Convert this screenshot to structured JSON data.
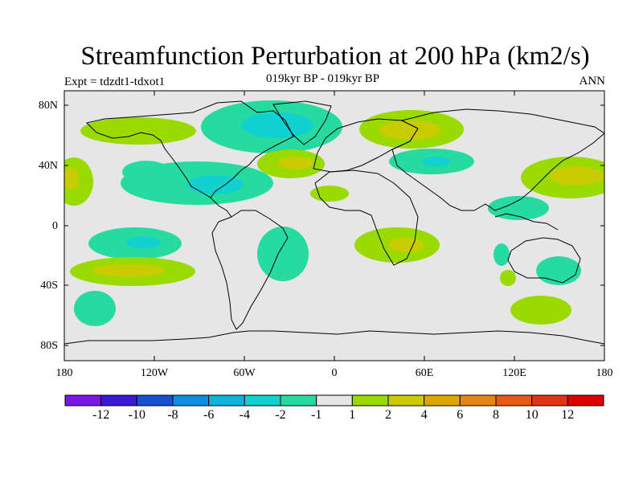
{
  "header": {
    "title": "Streamfunction Perturbation at 200 hPa (km2/s)",
    "subtitle": "019kyr BP - 019kyr BP",
    "experiment": "Expt = tdzdt1-tdxot1",
    "season": "ANN"
  },
  "axes": {
    "lat_labels": [
      "80N",
      "40N",
      "0",
      "40S",
      "80S"
    ],
    "lon_labels": [
      "180",
      "120W",
      "60W",
      "0",
      "60E",
      "120E",
      "180"
    ]
  },
  "colorbar": {
    "colors": [
      "#7b16e6",
      "#3a1ad6",
      "#1750d0",
      "#0e8ee0",
      "#0fb4dc",
      "#10d1cf",
      "#27dba0",
      "#e6e6e6",
      "#9ada00",
      "#c8cc00",
      "#dca800",
      "#e6841a",
      "#e65a18",
      "#e23416",
      "#e00000"
    ],
    "labels": [
      "-12",
      "-10",
      "-8",
      "-6",
      "-4",
      "-2",
      "-1",
      "1",
      "2",
      "4",
      "6",
      "8",
      "10",
      "12"
    ]
  },
  "map_colors": {
    "background": "#e6e6e6",
    "neg1": "#27dba0",
    "neg2": "#10d1cf",
    "pos1": "#9ada00",
    "pos2": "#c8cc00"
  }
}
